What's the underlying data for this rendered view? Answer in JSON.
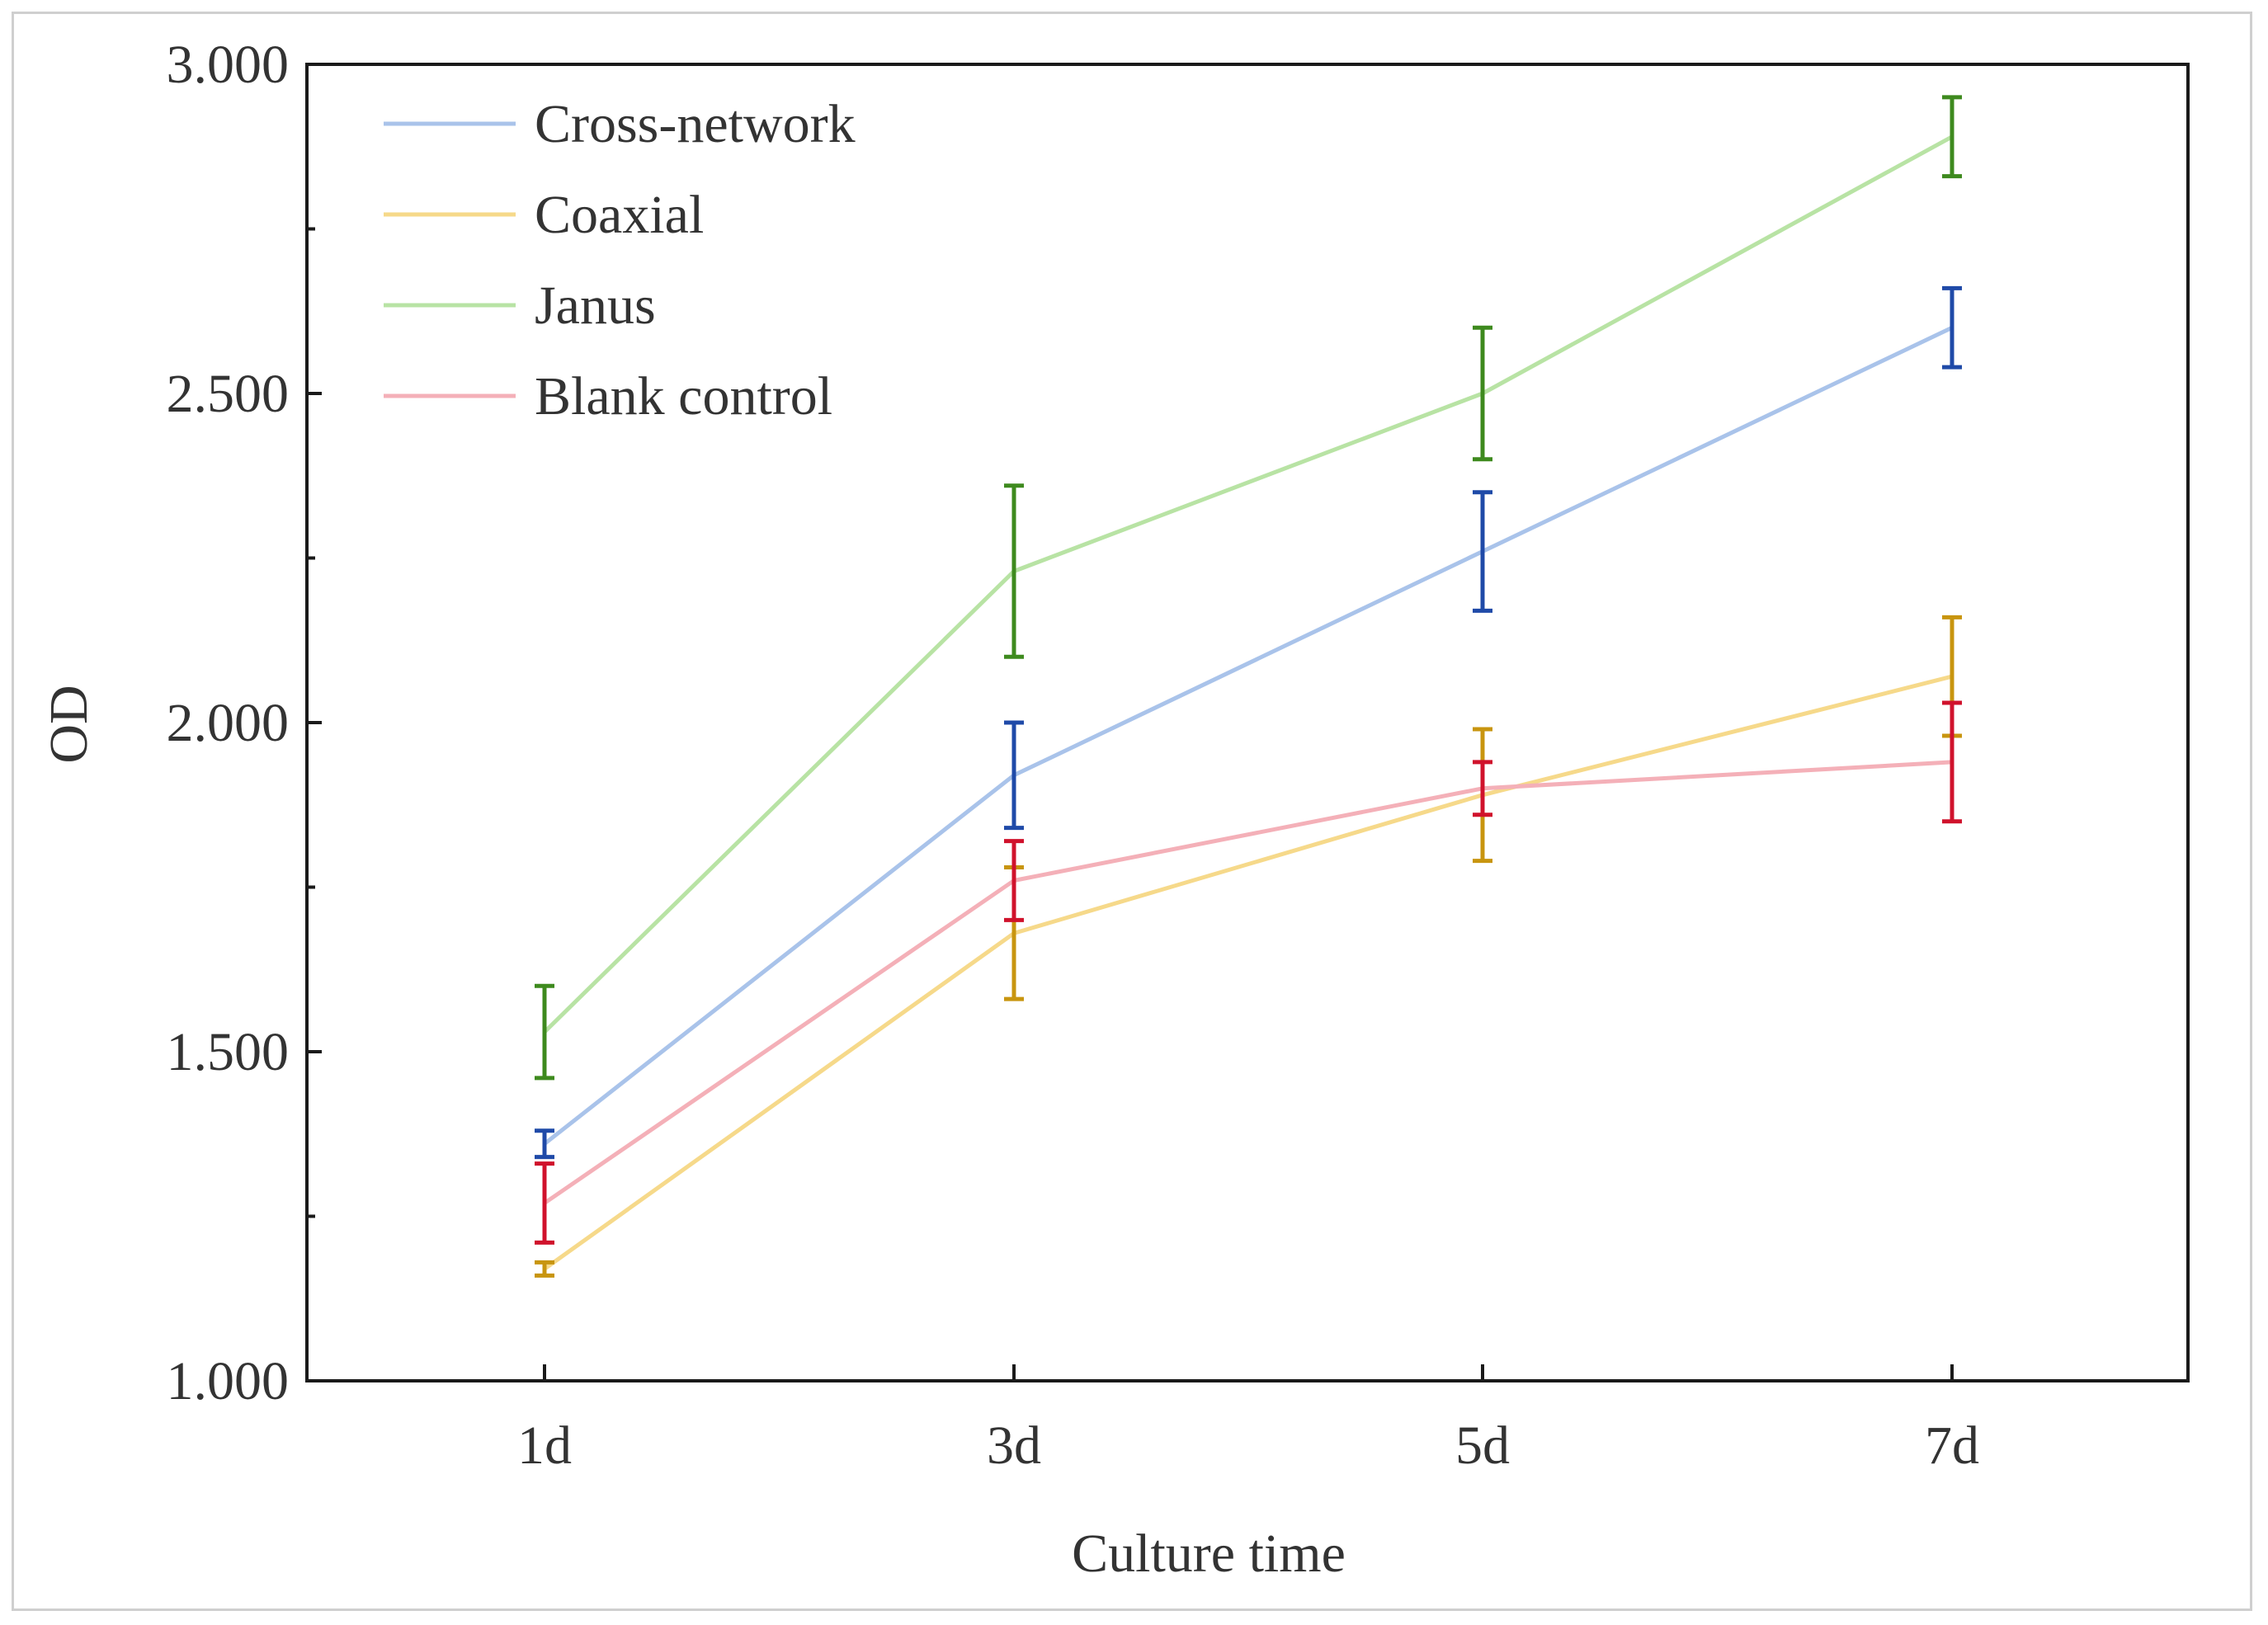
{
  "chart_data": {
    "type": "line",
    "title": "",
    "xlabel": "Culture time",
    "ylabel": "OD",
    "categories": [
      "1d",
      "3d",
      "5d",
      "7d"
    ],
    "ylim": [
      1.0,
      3.0
    ],
    "yticks": [
      1.0,
      1.5,
      2.0,
      2.5,
      3.0
    ],
    "ytick_labels": [
      "1.000",
      "1.500",
      "2.000",
      "2.500",
      "3.000"
    ],
    "legend_position": "top-left",
    "grid": false,
    "series": [
      {
        "name": "Cross-network",
        "line_color": "#a9c3ea",
        "errorbar_color": "#1f4aa8",
        "values": [
          1.36,
          1.92,
          2.26,
          2.6
        ],
        "errors": [
          0.02,
          0.08,
          0.09,
          0.06
        ]
      },
      {
        "name": "Coaxial",
        "line_color": "#f6d98a",
        "errorbar_color": "#c8950f",
        "values": [
          1.17,
          1.68,
          1.89,
          2.07
        ],
        "errors": [
          0.01,
          0.1,
          0.1,
          0.09
        ]
      },
      {
        "name": "Janus",
        "line_color": "#b8e3a4",
        "errorbar_color": "#3e8a1e",
        "values": [
          1.53,
          2.23,
          2.5,
          2.89
        ],
        "errors": [
          0.07,
          0.13,
          0.1,
          0.06
        ]
      },
      {
        "name": "Blank control",
        "line_color": "#f4b0b8",
        "errorbar_color": "#d0122c",
        "values": [
          1.27,
          1.76,
          1.9,
          1.94
        ],
        "errors": [
          0.06,
          0.06,
          0.04,
          0.09
        ]
      }
    ]
  }
}
